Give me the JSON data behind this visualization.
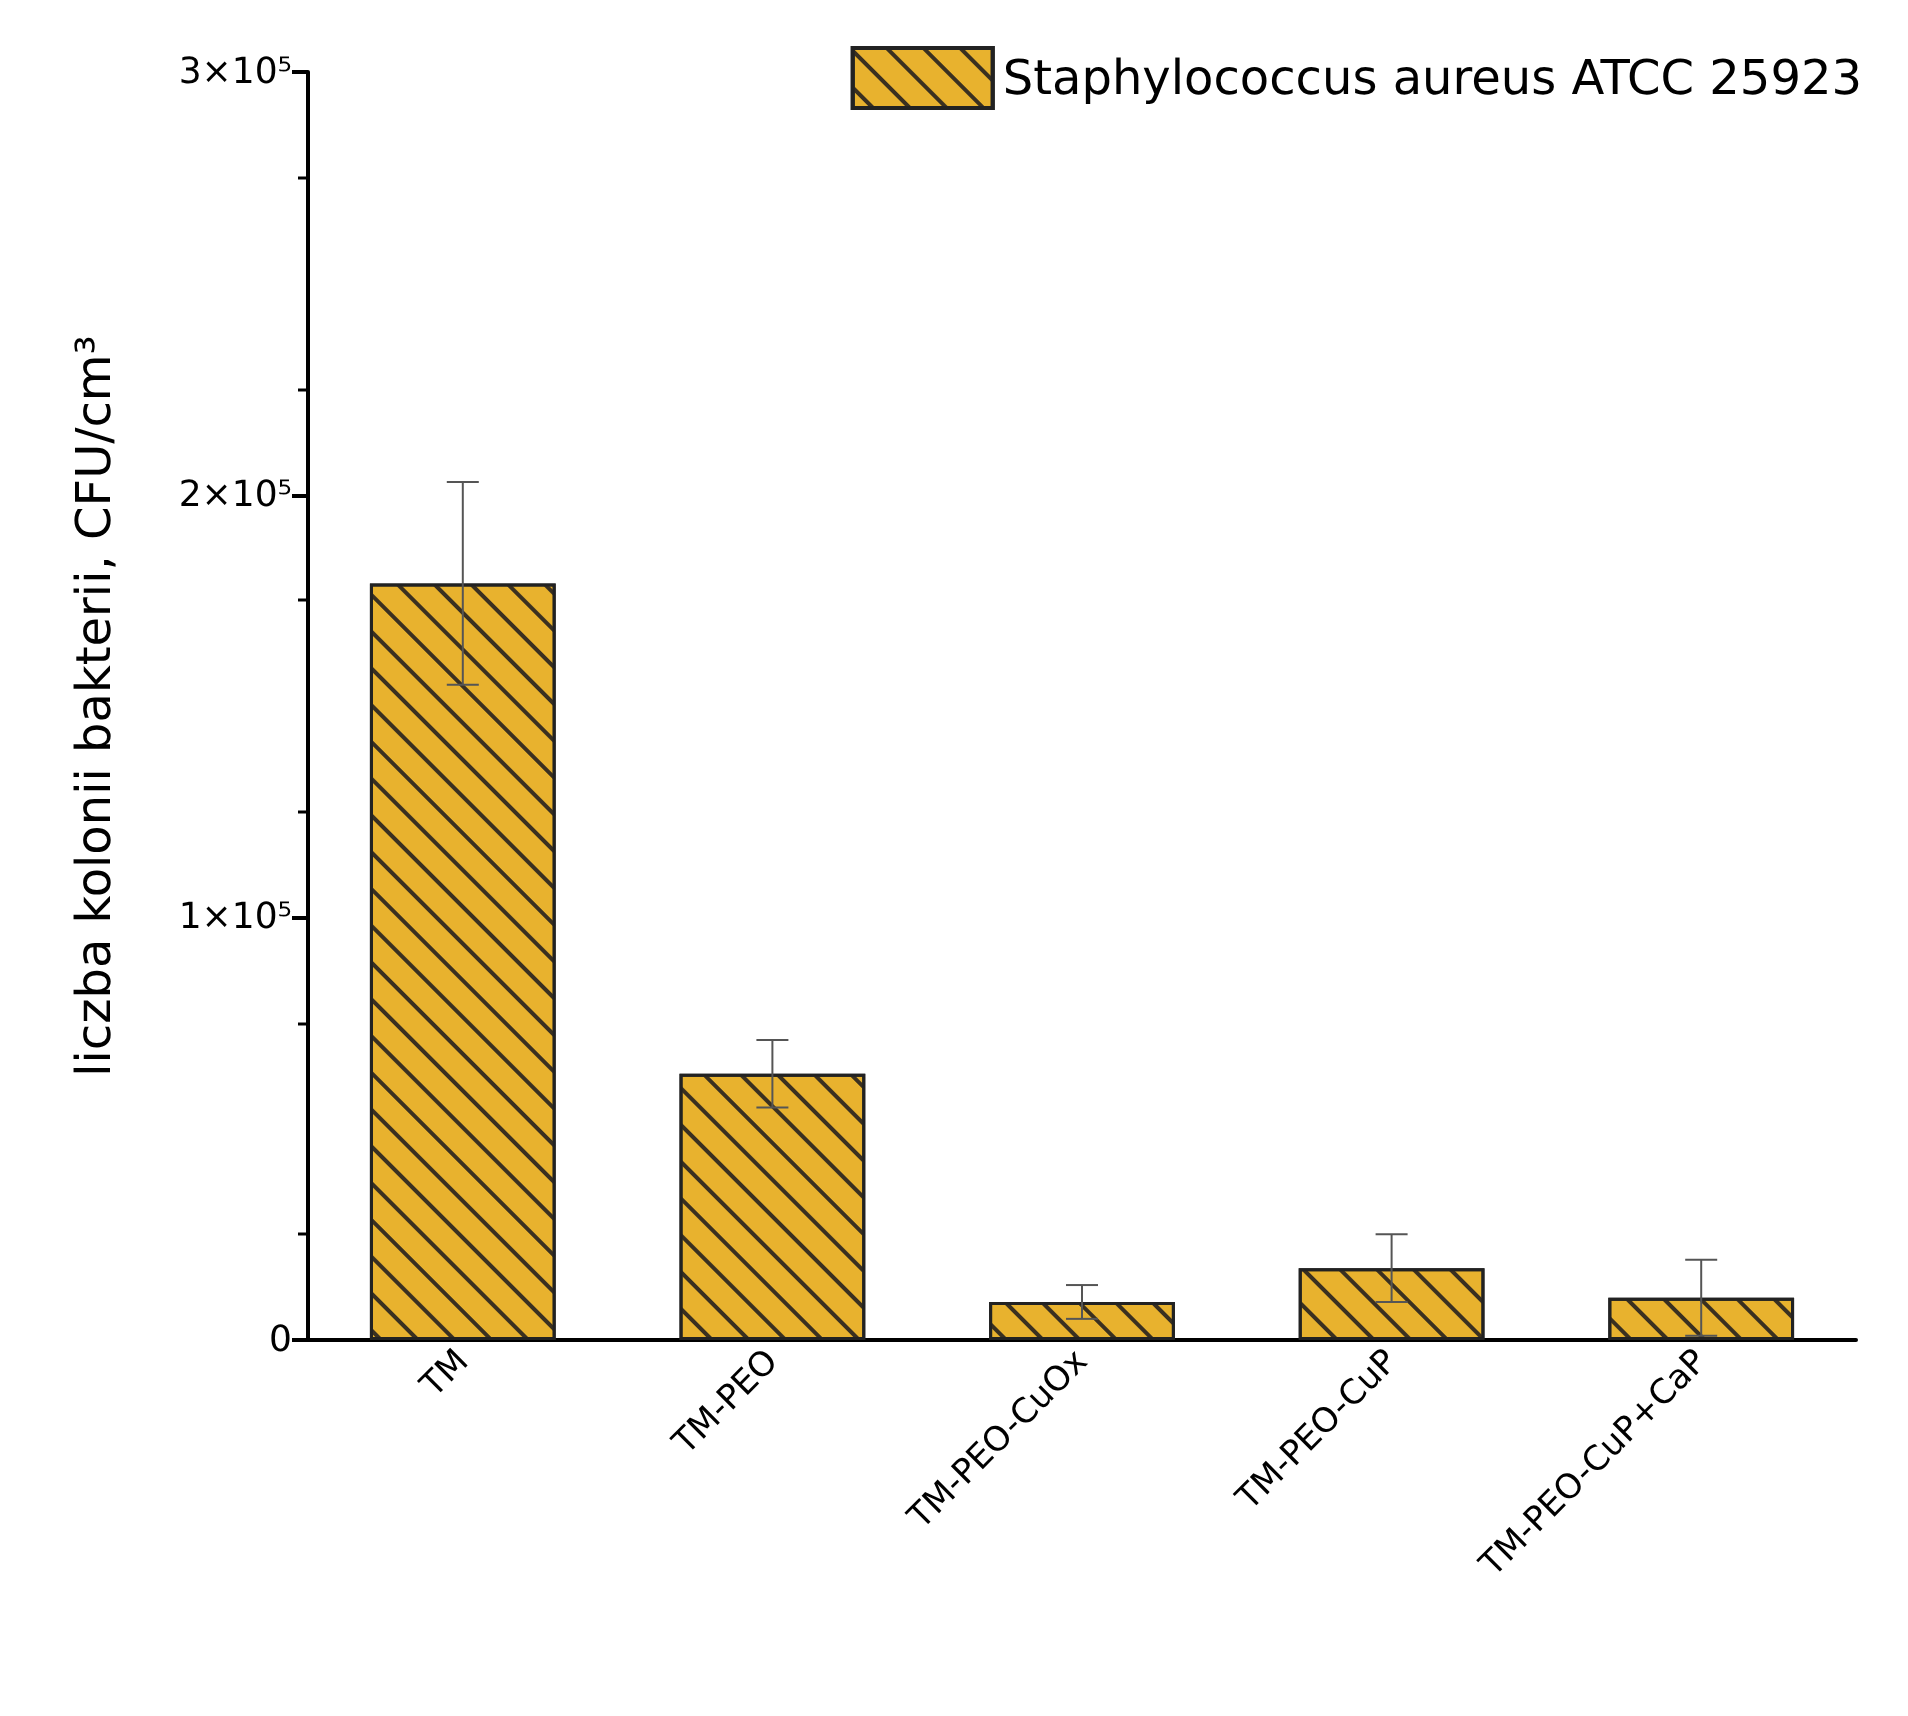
{
  "chart_data": {
    "type": "bar",
    "ylabel": "liczba kolonii bakterii, CFU/cm³",
    "categories": [
      "TM",
      "TM-PEO",
      "TM-PEO-CuOx",
      "TM-PEO-CuP",
      "TM-PEO-CuP+CaP"
    ],
    "series": [
      {
        "name": "Staphylococcus aureus ATCC 25923",
        "color": "#e8b22e",
        "values": [
          179000,
          63000,
          9000,
          17000,
          10000
        ],
        "errors": [
          24000,
          8000,
          4000,
          8000,
          9000
        ]
      }
    ],
    "ylim": [
      0,
      300000
    ],
    "yticks": [
      {
        "value": 0,
        "label": "0"
      },
      {
        "value": 100000,
        "label": "1×10⁵"
      },
      {
        "value": 200000,
        "label": "2×10⁵"
      },
      {
        "value": 300000,
        "label": "3×10⁵"
      }
    ],
    "grid": false,
    "legend": "top right"
  }
}
